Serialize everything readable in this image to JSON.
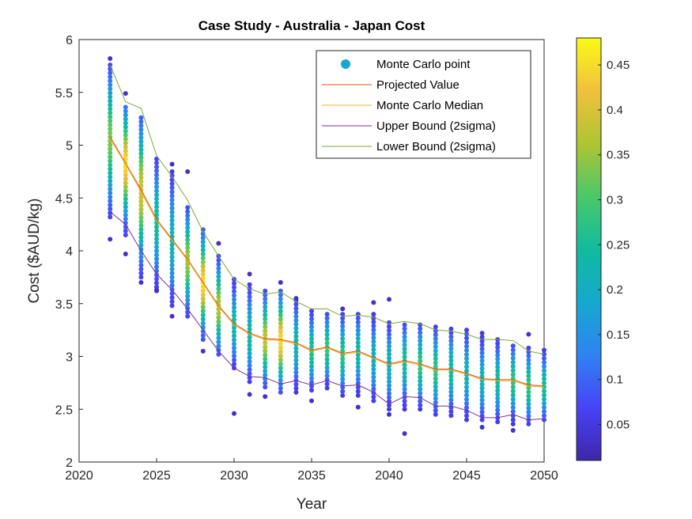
{
  "chart_data": {
    "type": "scatter",
    "title": "Case Study - Australia - Japan Cost",
    "xlabel": "Year",
    "ylabel": "Cost ($AUD/kg)",
    "xlim": [
      2020,
      2050
    ],
    "ylim": [
      2,
      6
    ],
    "x_ticks": [
      "2020",
      "2025",
      "2030",
      "2035",
      "2040",
      "2045",
      "2050"
    ],
    "y_ticks": [
      "2",
      "2.5",
      "3",
      "3.5",
      "4",
      "4.5",
      "5",
      "5.5",
      "6"
    ],
    "grid": false,
    "legend_position": "top-right",
    "x": [
      2022,
      2023,
      2024,
      2025,
      2026,
      2027,
      2028,
      2029,
      2030,
      2031,
      2032,
      2033,
      2034,
      2035,
      2036,
      2037,
      2038,
      2039,
      2040,
      2041,
      2042,
      2043,
      2044,
      2045,
      2046,
      2047,
      2048,
      2049,
      2050
    ],
    "series": [
      {
        "name": "Monte Carlo point",
        "kind": "points",
        "range_low": [
          4.32,
          4.15,
          3.75,
          3.62,
          3.48,
          3.38,
          3.16,
          3.02,
          2.89,
          2.76,
          2.71,
          2.66,
          2.66,
          2.68,
          2.7,
          2.63,
          2.63,
          2.58,
          2.5,
          2.5,
          2.5,
          2.45,
          2.44,
          2.4,
          2.4,
          2.38,
          2.36,
          2.36,
          2.4
        ],
        "range_high": [
          5.76,
          5.36,
          5.26,
          4.87,
          4.75,
          4.41,
          4.2,
          3.95,
          3.73,
          3.68,
          3.62,
          3.62,
          3.53,
          3.43,
          3.4,
          3.4,
          3.4,
          3.4,
          3.32,
          3.3,
          3.3,
          3.28,
          3.26,
          3.25,
          3.22,
          3.16,
          3.1,
          3.08,
          3.06
        ],
        "outliers": [
          [
            2022,
            5.82
          ],
          [
            2022,
            4.11
          ],
          [
            2023,
            5.49
          ],
          [
            2023,
            3.97
          ],
          [
            2024,
            3.7
          ],
          [
            2025,
            3.63
          ],
          [
            2026,
            4.82
          ],
          [
            2026,
            3.38
          ],
          [
            2027,
            4.75
          ],
          [
            2028,
            3.05
          ],
          [
            2029,
            4.07
          ],
          [
            2030,
            2.46
          ],
          [
            2031,
            3.78
          ],
          [
            2031,
            2.64
          ],
          [
            2032,
            2.62
          ],
          [
            2033,
            3.7
          ],
          [
            2034,
            3.55
          ],
          [
            2035,
            2.58
          ],
          [
            2037,
            3.45
          ],
          [
            2038,
            2.52
          ],
          [
            2039,
            3.51
          ],
          [
            2040,
            3.54
          ],
          [
            2040,
            2.45
          ],
          [
            2041,
            2.27
          ],
          [
            2046,
            2.33
          ],
          [
            2048,
            2.3
          ],
          [
            2049,
            3.21
          ]
        ]
      },
      {
        "name": "Projected Value",
        "kind": "line",
        "color": "#d95319",
        "values": [
          5.08,
          4.83,
          4.58,
          4.3,
          4.11,
          3.92,
          3.7,
          3.48,
          3.31,
          3.22,
          3.17,
          3.16,
          3.13,
          3.06,
          3.09,
          3.03,
          3.05,
          2.99,
          2.93,
          2.96,
          2.93,
          2.88,
          2.88,
          2.84,
          2.79,
          2.78,
          2.78,
          2.73,
          2.72
        ]
      },
      {
        "name": "Monte Carlo Median",
        "kind": "line",
        "color": "#edb120",
        "values": [
          5.06,
          4.82,
          4.56,
          4.28,
          4.1,
          3.91,
          3.69,
          3.47,
          3.3,
          3.21,
          3.16,
          3.15,
          3.12,
          3.05,
          3.08,
          3.02,
          3.04,
          2.98,
          2.92,
          2.95,
          2.92,
          2.87,
          2.87,
          2.83,
          2.78,
          2.77,
          2.77,
          2.72,
          2.71
        ]
      },
      {
        "name": "Upper Bound (2sigma)",
        "kind": "line",
        "color": "#7e2f8e",
        "values": [
          4.37,
          4.25,
          4.0,
          3.78,
          3.63,
          3.45,
          3.25,
          3.05,
          2.89,
          2.81,
          2.8,
          2.74,
          2.77,
          2.73,
          2.77,
          2.72,
          2.73,
          2.66,
          2.55,
          2.62,
          2.61,
          2.53,
          2.53,
          2.49,
          2.42,
          2.42,
          2.45,
          2.4,
          2.41
        ]
      },
      {
        "name": "Lower Bound (2sigma)",
        "kind": "line",
        "color": "#77ac30",
        "values": [
          5.76,
          5.41,
          5.35,
          4.9,
          4.7,
          4.48,
          4.18,
          3.95,
          3.73,
          3.64,
          3.59,
          3.61,
          3.52,
          3.45,
          3.45,
          3.38,
          3.39,
          3.37,
          3.31,
          3.33,
          3.31,
          3.25,
          3.24,
          3.21,
          3.16,
          3.16,
          3.15,
          3.05,
          3.02
        ]
      }
    ],
    "colorbar": {
      "range": [
        0.01,
        0.48
      ],
      "ticks": [
        "0.05",
        "0.1",
        "0.15",
        "0.2",
        "0.25",
        "0.3",
        "0.35",
        "0.4",
        "0.45"
      ],
      "colormap": [
        "#3e26a8",
        "#4743f8",
        "#2f83f2",
        "#16a9ce",
        "#11bb9d",
        "#4bc869",
        "#aec533",
        "#f1c03d",
        "#f9fb15"
      ]
    }
  }
}
